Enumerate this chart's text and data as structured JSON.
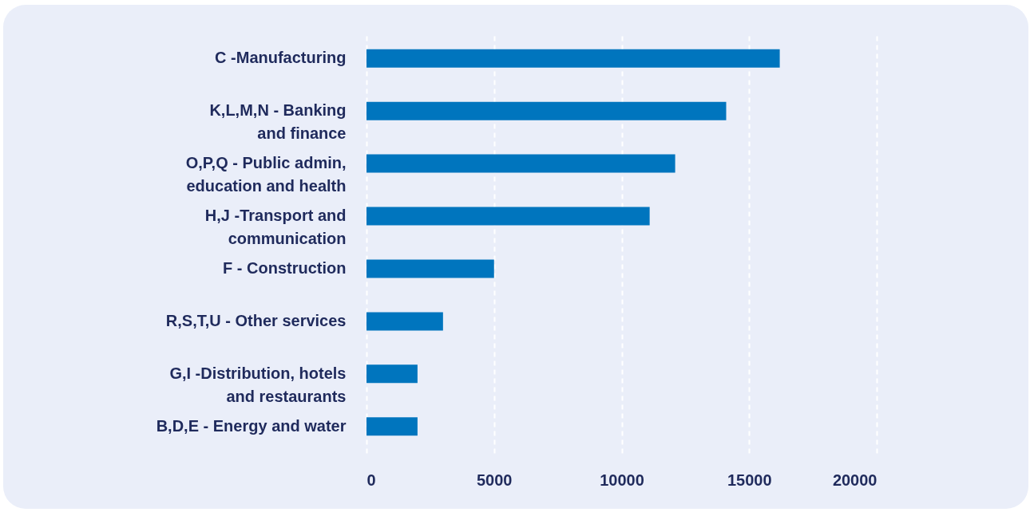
{
  "chart_data": {
    "type": "bar",
    "orientation": "horizontal",
    "categories": [
      "C -Manufacturing",
      "K,L,M,N - Banking and finance",
      "O,P,Q - Public admin, education and health",
      "H,J -Transport and communication",
      "F - Construction",
      "R,S,T,U - Other services",
      "G,I -Distribution, hotels and restaurants",
      "B,D,E - Energy and water"
    ],
    "values": [
      16200,
      14100,
      12100,
      11100,
      5000,
      3000,
      2000,
      2000
    ],
    "color": "#0075be",
    "xlim": [
      0,
      20000
    ],
    "xticks": [
      0,
      5000,
      10000,
      15000,
      20000
    ],
    "grid": "x"
  }
}
